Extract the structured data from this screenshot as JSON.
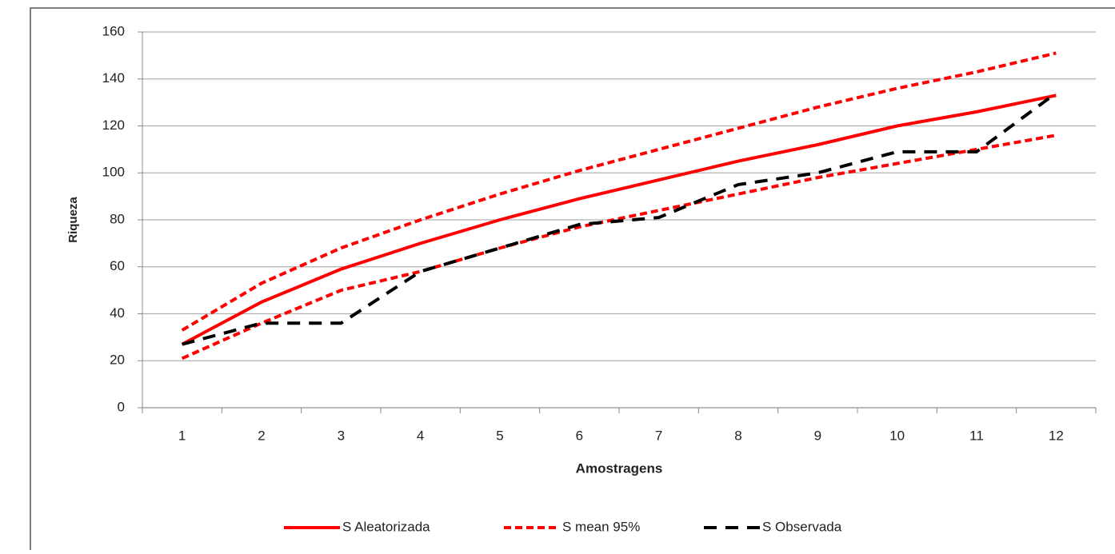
{
  "chart_data": {
    "type": "line",
    "x_label": "Amostragens",
    "y_label": "Riqueza",
    "categories": [
      "1",
      "2",
      "3",
      "4",
      "5",
      "6",
      "7",
      "8",
      "9",
      "10",
      "11",
      "12"
    ],
    "series": [
      {
        "name": "S Aleatorizada",
        "color": "#ff0000",
        "dash": "solid",
        "values": [
          27,
          45,
          59,
          70,
          80,
          89,
          97,
          105,
          112,
          120,
          126,
          133
        ]
      },
      {
        "name": "S mean 95%",
        "color": "#ff0000",
        "dash": "short",
        "values": [
          33,
          53,
          68,
          80,
          91,
          101,
          110,
          119,
          128,
          136,
          143,
          151
        ],
        "lower": [
          21,
          36,
          50,
          58,
          68,
          77,
          84,
          91,
          98,
          104,
          110,
          116
        ]
      },
      {
        "name": "S Observada",
        "color": "#000000",
        "dash": "long",
        "values": [
          27,
          36,
          36,
          58,
          68,
          78,
          81,
          95,
          100,
          109,
          109,
          134
        ]
      }
    ],
    "ylim": [
      0,
      160
    ],
    "yticks": [
      0,
      20,
      40,
      60,
      80,
      100,
      120,
      140,
      160
    ],
    "grid": true,
    "legend": "bottom"
  }
}
